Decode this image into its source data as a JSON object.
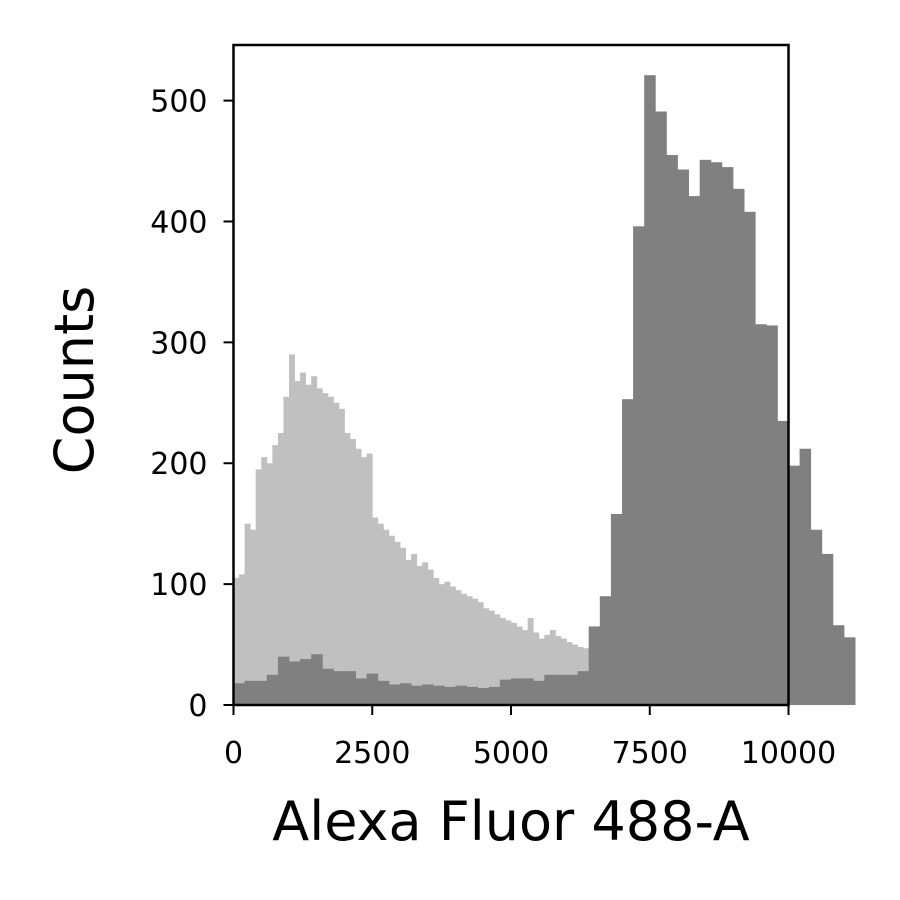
{
  "chart_data": {
    "type": "bar",
    "xlabel": "Alexa Fluor 488-A",
    "ylabel": "Counts",
    "xlim": [
      0,
      10000
    ],
    "ylim": [
      0,
      546
    ],
    "x_ticks": [
      "0",
      "2500",
      "5000",
      "7500",
      "10000"
    ],
    "y_ticks": [
      "0",
      "100",
      "200",
      "300",
      "400",
      "500"
    ],
    "grid": false,
    "legend": "none",
    "series": [
      {
        "color": "#c0c0c0",
        "bin_width": 100,
        "bin_start": 0,
        "values": [
          105,
          108,
          150,
          145,
          195,
          205,
          200,
          215,
          225,
          255,
          290,
          268,
          275,
          265,
          272,
          262,
          258,
          255,
          250,
          245,
          225,
          220,
          212,
          205,
          208,
          155,
          150,
          145,
          140,
          135,
          130,
          120,
          125,
          115,
          118,
          112,
          105,
          100,
          102,
          98,
          95,
          92,
          90,
          88,
          85,
          80,
          78,
          75,
          72,
          70,
          68,
          65,
          62,
          72,
          60,
          55,
          58,
          62,
          57,
          55,
          52,
          50,
          48,
          47,
          46,
          45,
          44,
          43,
          42,
          40,
          30,
          35,
          35,
          35,
          35,
          30,
          28,
          25,
          22,
          20,
          18,
          15,
          15,
          15,
          15,
          15,
          15,
          15,
          15,
          15,
          15,
          15,
          15,
          15,
          15,
          15,
          15,
          15,
          15,
          15
        ]
      },
      {
        "color": "#808080",
        "bin_width": 200,
        "bin_start": 0,
        "values": [
          18,
          20,
          20,
          25,
          40,
          36,
          38,
          42,
          30,
          28,
          28,
          22,
          26,
          20,
          17,
          18,
          16,
          17,
          16,
          15,
          16,
          15,
          14,
          15,
          21,
          22,
          22,
          20,
          25,
          25,
          25,
          28,
          65,
          90,
          158,
          253,
          396,
          521,
          491,
          455,
          443,
          421,
          451,
          449,
          445,
          427,
          408,
          315,
          314,
          235,
          198,
          212,
          145,
          125,
          66,
          56
        ]
      }
    ]
  }
}
